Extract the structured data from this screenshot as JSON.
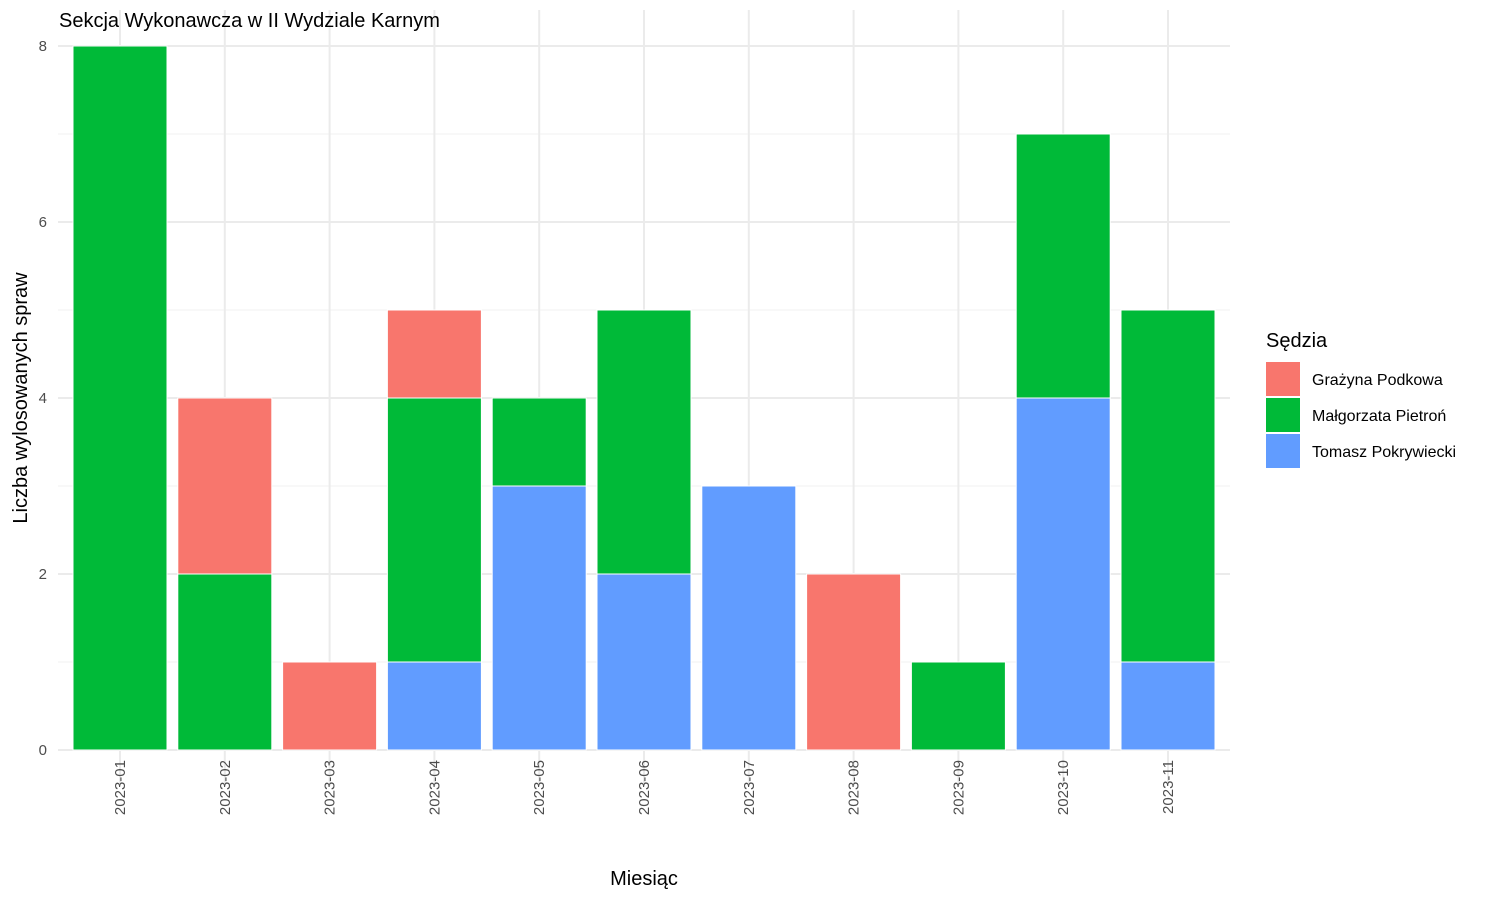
{
  "chart_data": {
    "type": "bar",
    "stacked": true,
    "title": "Sekcja Wykonawcza w II Wydziale Karnym",
    "xlabel": "Miesiąc",
    "ylabel": "Liczba wylosowanych spraw",
    "ylim": [
      0,
      8
    ],
    "yticks": [
      "0",
      "2",
      "4",
      "6",
      "8"
    ],
    "categories": [
      "2023-01",
      "2023-02",
      "2023-03",
      "2023-04",
      "2023-05",
      "2023-06",
      "2023-07",
      "2023-08",
      "2023-09",
      "2023-10",
      "2023-11"
    ],
    "grid": true,
    "legend": {
      "title": "Sędzia",
      "placement": "right"
    },
    "series": [
      {
        "name": "Tomasz Pokrywiecki",
        "color": "#619CFF",
        "values": [
          0,
          0,
          0,
          1,
          3,
          2,
          3,
          0,
          0,
          4,
          1
        ]
      },
      {
        "name": "Małgorzata Pietroń",
        "color": "#00BA38",
        "values": [
          8,
          2,
          0,
          3,
          1,
          3,
          0,
          0,
          1,
          3,
          4
        ]
      },
      {
        "name": "Grażyna Podkowa",
        "color": "#F8766D",
        "values": [
          0,
          2,
          1,
          1,
          0,
          0,
          0,
          2,
          0,
          0,
          0
        ]
      }
    ],
    "legend_order": [
      "Grażyna Podkowa",
      "Małgorzata Pietroń",
      "Tomasz Pokrywiecki"
    ]
  }
}
